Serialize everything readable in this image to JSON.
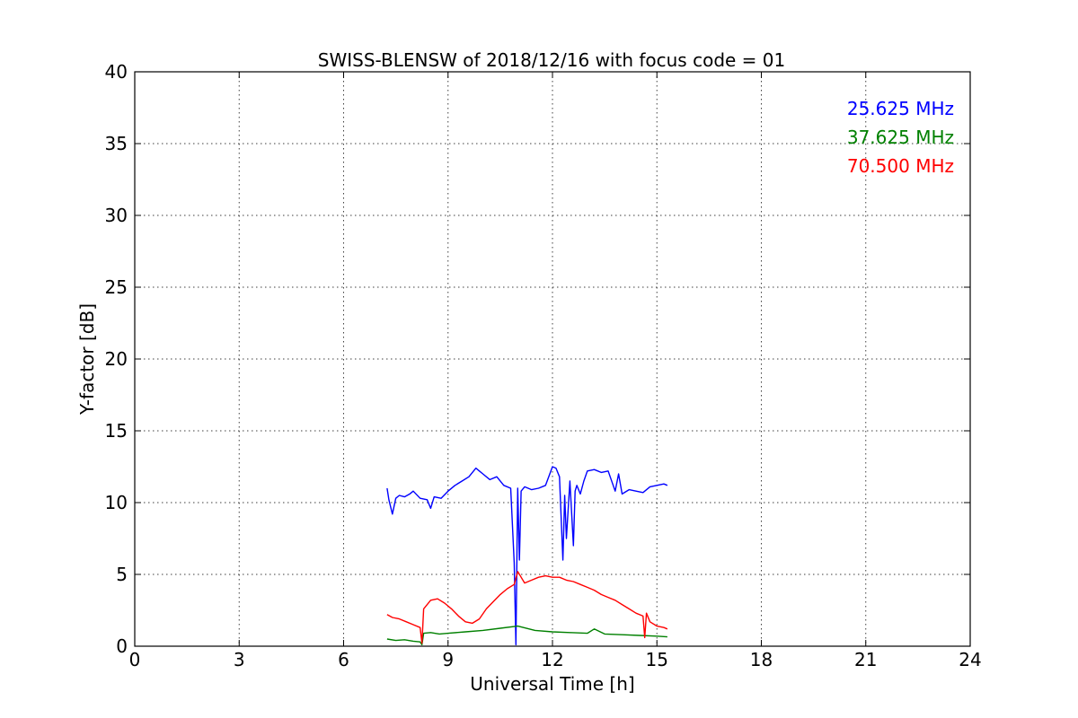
{
  "chart_data": {
    "type": "line",
    "title": "SWISS-BLENSW of 2018/12/16 with focus code = 01",
    "xlabel": "Universal Time [h]",
    "ylabel": "Y-factor [dB]",
    "xlim": [
      0,
      24
    ],
    "ylim": [
      0,
      40
    ],
    "xticks": [
      0,
      3,
      6,
      9,
      12,
      15,
      18,
      21,
      24
    ],
    "yticks": [
      0,
      5,
      10,
      15,
      20,
      25,
      30,
      35,
      40
    ],
    "grid": true,
    "legend_position": "top-right",
    "series": [
      {
        "name": "25.625 MHz",
        "color": "#0000ff",
        "x": [
          7.25,
          7.3,
          7.4,
          7.5,
          7.6,
          7.75,
          7.9,
          8.0,
          8.2,
          8.4,
          8.5,
          8.6,
          8.8,
          9.0,
          9.2,
          9.4,
          9.6,
          9.8,
          9.9,
          10.0,
          10.2,
          10.4,
          10.6,
          10.8,
          10.9,
          10.95,
          11.0,
          11.05,
          11.1,
          11.2,
          11.4,
          11.6,
          11.8,
          12.0,
          12.1,
          12.2,
          12.3,
          12.35,
          12.4,
          12.5,
          12.6,
          12.65,
          12.7,
          12.8,
          12.9,
          13.0,
          13.2,
          13.4,
          13.6,
          13.8,
          13.9,
          14.0,
          14.2,
          14.4,
          14.6,
          14.8,
          15.0,
          15.2,
          15.3
        ],
        "y": [
          11.0,
          10.2,
          9.2,
          10.3,
          10.5,
          10.4,
          10.6,
          10.8,
          10.3,
          10.2,
          9.6,
          10.4,
          10.3,
          10.8,
          11.2,
          11.5,
          11.8,
          12.4,
          12.2,
          12.0,
          11.6,
          11.8,
          11.2,
          11.0,
          5.8,
          0.1,
          11.0,
          6.0,
          10.8,
          11.1,
          10.9,
          11.0,
          11.2,
          12.5,
          12.4,
          11.8,
          6.0,
          10.5,
          7.5,
          11.5,
          7.0,
          10.8,
          11.2,
          10.6,
          11.5,
          12.2,
          12.3,
          12.1,
          12.2,
          10.8,
          12.0,
          10.6,
          10.9,
          10.8,
          10.7,
          11.1,
          11.2,
          11.3,
          11.2
        ]
      },
      {
        "name": "37.625 MHz",
        "color": "#008000",
        "x": [
          7.25,
          7.5,
          7.75,
          8.0,
          8.2,
          8.25,
          8.3,
          8.5,
          8.75,
          9.0,
          9.5,
          10.0,
          10.5,
          11.0,
          11.5,
          12.0,
          12.5,
          13.0,
          13.2,
          13.5,
          14.0,
          14.5,
          15.0,
          15.3
        ],
        "y": [
          0.5,
          0.4,
          0.45,
          0.35,
          0.3,
          0.1,
          0.9,
          0.95,
          0.85,
          0.9,
          1.0,
          1.1,
          1.25,
          1.4,
          1.1,
          1.0,
          0.95,
          0.9,
          1.2,
          0.85,
          0.8,
          0.75,
          0.7,
          0.65
        ]
      },
      {
        "name": "70.500 MHz",
        "color": "#ff0000",
        "x": [
          7.25,
          7.4,
          7.6,
          7.8,
          8.0,
          8.2,
          8.25,
          8.3,
          8.5,
          8.7,
          8.9,
          9.1,
          9.3,
          9.5,
          9.7,
          9.9,
          10.1,
          10.3,
          10.5,
          10.7,
          10.9,
          11.0,
          11.2,
          11.4,
          11.6,
          11.8,
          12.0,
          12.2,
          12.4,
          12.6,
          12.8,
          13.0,
          13.2,
          13.4,
          13.6,
          13.8,
          14.0,
          14.2,
          14.4,
          14.6,
          14.65,
          14.7,
          14.8,
          15.0,
          15.2,
          15.3
        ],
        "y": [
          2.2,
          2.0,
          1.9,
          1.7,
          1.5,
          1.3,
          0.2,
          2.6,
          3.2,
          3.3,
          3.0,
          2.6,
          2.1,
          1.7,
          1.6,
          1.9,
          2.6,
          3.1,
          3.6,
          4.0,
          4.3,
          5.2,
          4.4,
          4.6,
          4.8,
          4.9,
          4.8,
          4.8,
          4.6,
          4.5,
          4.3,
          4.1,
          3.9,
          3.6,
          3.4,
          3.2,
          2.9,
          2.6,
          2.3,
          2.1,
          0.6,
          2.3,
          1.7,
          1.4,
          1.3,
          1.2
        ]
      }
    ]
  }
}
